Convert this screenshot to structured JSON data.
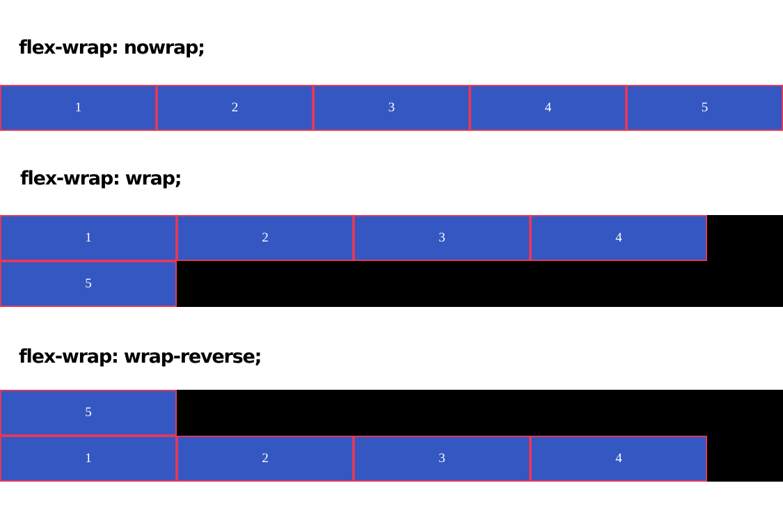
{
  "sections": [
    {
      "heading": "flex-wrap: nowrap;",
      "items": [
        "1",
        "2",
        "3",
        "4",
        "5"
      ]
    },
    {
      "heading": "flex-wrap: wrap;",
      "items": [
        "1",
        "2",
        "3",
        "4",
        "5"
      ]
    },
    {
      "heading": "flex-wrap: wrap-reverse;",
      "items": [
        "1",
        "2",
        "3",
        "4",
        "5"
      ]
    }
  ],
  "colors": {
    "item_background": "#3457c2",
    "item_border": "#e0395b",
    "item_text": "#ffffff",
    "container_background": "#000000",
    "page_background": "#ffffff"
  }
}
